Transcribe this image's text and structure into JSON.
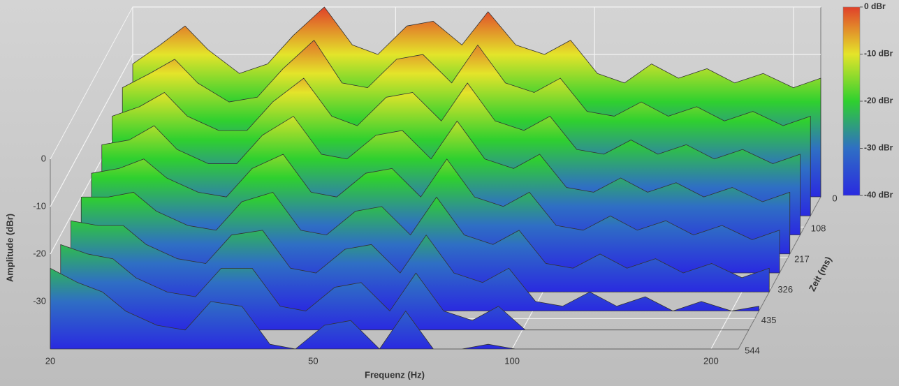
{
  "chart_data": {
    "type": "waterfall",
    "xlabel": "Frequenz (Hz)",
    "ylabel": "Amplitude (dBr)",
    "zlabel": "Zeit (ms)",
    "xscale": "log",
    "xlim": [
      20,
      220
    ],
    "xticks": [
      20,
      50,
      100,
      200
    ],
    "ylim": [
      -40,
      0
    ],
    "yticks": [
      0,
      -10,
      -20,
      -30
    ],
    "zlim": [
      0,
      544
    ],
    "zticks": [
      0,
      108,
      217,
      326,
      435,
      544
    ],
    "colorscale": [
      "#2a2ae0",
      "#2f6fc4",
      "#2fd02f",
      "#e4e42a",
      "#e0402a"
    ],
    "colorbar_ticks": [
      {
        "value": 0,
        "label": "0 dBr"
      },
      {
        "value": -10,
        "label": "-10 dBr"
      },
      {
        "value": -20,
        "label": "-20 dBr"
      },
      {
        "value": -30,
        "label": "-30 dBr"
      },
      {
        "value": -40,
        "label": "-40 dBr"
      }
    ],
    "grid": true,
    "x": [
      20,
      22,
      24,
      26,
      29,
      32,
      35,
      39,
      43,
      47,
      52,
      57,
      63,
      69,
      76,
      84,
      92,
      101,
      111,
      122,
      134,
      148,
      163,
      180,
      200,
      220
    ],
    "slices": [
      {
        "time": 0,
        "values": [
          -12,
          -8,
          -4,
          -9,
          -14,
          -12,
          -6,
          0,
          -8,
          -10,
          -4,
          -3,
          -8,
          -1,
          -8,
          -10,
          -7,
          -14,
          -16,
          -12,
          -15,
          -13,
          -16,
          -14,
          -17,
          -15
        ]
      },
      {
        "time": 68,
        "values": [
          -13,
          -10,
          -7,
          -12,
          -16,
          -15,
          -9,
          -3,
          -12,
          -13,
          -7,
          -6,
          -12,
          -4,
          -12,
          -14,
          -11,
          -18,
          -19,
          -16,
          -19,
          -17,
          -20,
          -18,
          -21,
          -19
        ]
      },
      {
        "time": 136,
        "values": [
          -15,
          -13,
          -10,
          -15,
          -18,
          -18,
          -12,
          -7,
          -15,
          -17,
          -11,
          -10,
          -16,
          -8,
          -16,
          -18,
          -15,
          -22,
          -23,
          -20,
          -23,
          -21,
          -24,
          -22,
          -25,
          -23
        ]
      },
      {
        "time": 204,
        "values": [
          -17,
          -16,
          -13,
          -18,
          -21,
          -21,
          -15,
          -11,
          -19,
          -20,
          -15,
          -14,
          -20,
          -12,
          -20,
          -22,
          -19,
          -26,
          -27,
          -24,
          -27,
          -25,
          -28,
          -26,
          -29,
          -27
        ]
      },
      {
        "time": 272,
        "values": [
          -19,
          -18,
          -16,
          -20,
          -23,
          -24,
          -18,
          -15,
          -23,
          -24,
          -19,
          -18,
          -24,
          -16,
          -24,
          -26,
          -23,
          -30,
          -31,
          -28,
          -31,
          -29,
          -32,
          -30,
          -33,
          -31
        ]
      },
      {
        "time": 340,
        "values": [
          -20,
          -20,
          -19,
          -23,
          -26,
          -27,
          -21,
          -19,
          -27,
          -28,
          -23,
          -22,
          -28,
          -20,
          -28,
          -30,
          -27,
          -34,
          -35,
          -32,
          -35,
          -33,
          -36,
          -34,
          -37,
          -35
        ]
      },
      {
        "time": 408,
        "values": [
          -21,
          -22,
          -22,
          -26,
          -29,
          -30,
          -24,
          -23,
          -31,
          -32,
          -27,
          -26,
          -32,
          -24,
          -32,
          -34,
          -31,
          -38,
          -39,
          -36,
          -39,
          -37,
          -40,
          -38,
          -40,
          -39
        ]
      },
      {
        "time": 476,
        "values": [
          -22,
          -24,
          -25,
          -29,
          -32,
          -33,
          -27,
          -27,
          -35,
          -36,
          -31,
          -30,
          -36,
          -28,
          -36,
          -38,
          -35,
          -40,
          -40,
          -40,
          -40,
          -40,
          -40,
          -40,
          -40,
          -40
        ]
      },
      {
        "time": 544,
        "values": [
          -23,
          -26,
          -28,
          -32,
          -35,
          -36,
          -30,
          -31,
          -39,
          -40,
          -35,
          -34,
          -40,
          -32,
          -40,
          -40,
          -39,
          -40,
          -40,
          -40,
          -40,
          -40,
          -40,
          -40,
          -40,
          -40
        ]
      }
    ]
  }
}
